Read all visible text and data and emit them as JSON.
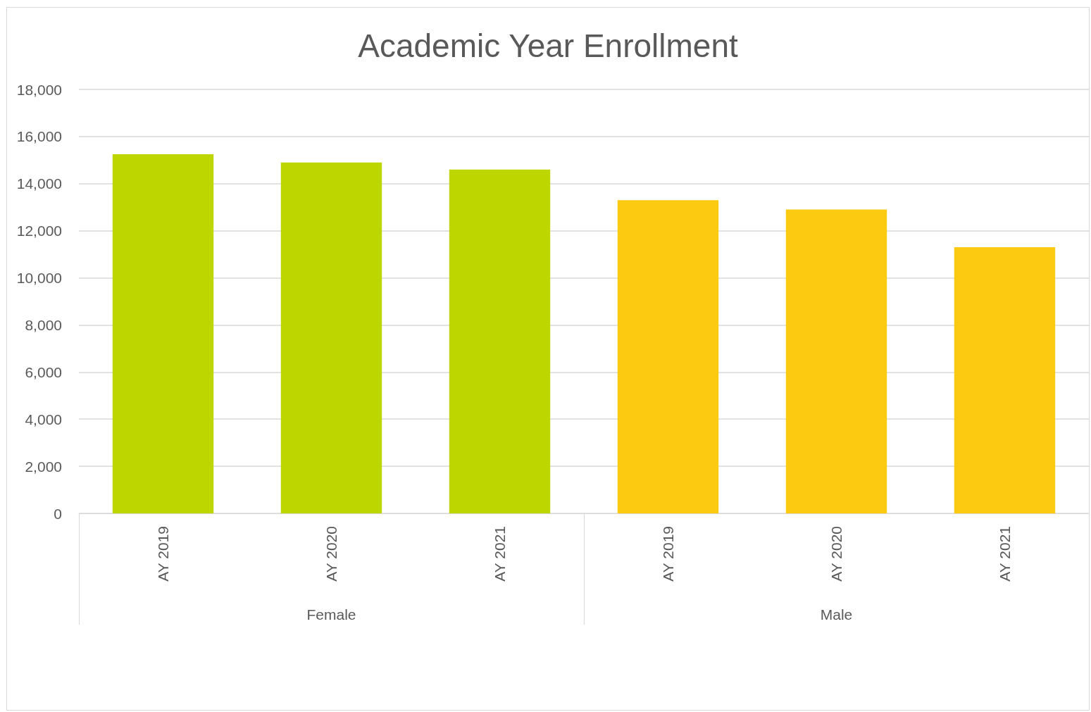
{
  "chart_data": {
    "type": "bar",
    "title": "Academic Year Enrollment",
    "categories": [
      "AY 2019",
      "AY 2020",
      "AY 2021",
      "AY 2019",
      "AY 2020",
      "AY 2021"
    ],
    "values": [
      15250,
      14900,
      14600,
      13300,
      12900,
      11300
    ],
    "colors": [
      "#bed600",
      "#bed600",
      "#bed600",
      "#fdca12",
      "#fdca12",
      "#fdca12"
    ],
    "annotations": [
      "Female",
      "Male"
    ],
    "ylim": [
      0,
      18000
    ],
    "yticks": [
      {
        "value": 0,
        "label": "0"
      },
      {
        "value": 2000,
        "label": "2,000"
      },
      {
        "value": 4000,
        "label": "4,000"
      },
      {
        "value": 6000,
        "label": "6,000"
      },
      {
        "value": 8000,
        "label": "8,000"
      },
      {
        "value": 10000,
        "label": "10,000"
      },
      {
        "value": 12000,
        "label": "12,000"
      },
      {
        "value": 14000,
        "label": "14,000"
      },
      {
        "value": 16000,
        "label": "16,000"
      },
      {
        "value": 18000,
        "label": "18,000"
      }
    ],
    "grid": "y"
  }
}
